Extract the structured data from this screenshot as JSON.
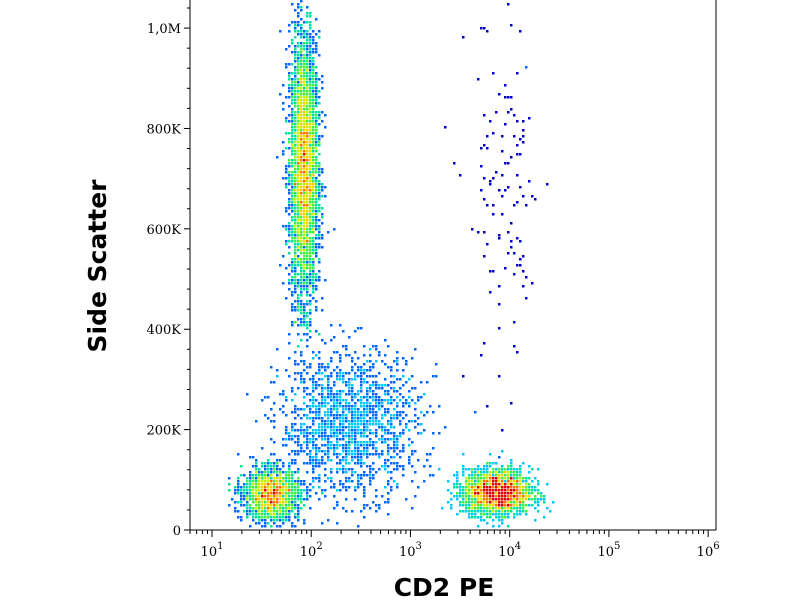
{
  "chart_data": {
    "type": "heatmap",
    "subtype": "flow-cytometry density dot plot",
    "xlabel": "CD2 PE",
    "ylabel": "Side Scatter",
    "x_scale": "log",
    "x_range": [
      6,
      1200000
    ],
    "x_ticks": [
      {
        "value": 10,
        "base": "10",
        "exp": "1"
      },
      {
        "value": 100,
        "base": "10",
        "exp": "2"
      },
      {
        "value": 1000,
        "base": "10",
        "exp": "3"
      },
      {
        "value": 10000,
        "base": "10",
        "exp": "4"
      },
      {
        "value": 100000,
        "base": "10",
        "exp": "5"
      },
      {
        "value": 1000000,
        "base": "10",
        "exp": "6"
      }
    ],
    "y_scale": "linear",
    "y_range": [
      0,
      1040000
    ],
    "y_ticks": [
      {
        "value": 0,
        "label": "0"
      },
      {
        "value": 200000,
        "label": "200K"
      },
      {
        "value": 400000,
        "label": "400K"
      },
      {
        "value": 600000,
        "label": "600K"
      },
      {
        "value": 800000,
        "label": "800K"
      },
      {
        "value": 1000000,
        "label": "1,0M"
      }
    ],
    "colormap": [
      "#0000c8",
      "#0066ff",
      "#00c8ff",
      "#00e0a0",
      "#40f040",
      "#c8f000",
      "#ffd000",
      "#ff7000",
      "#e00000"
    ],
    "populations": [
      {
        "x_center": 85,
        "y_center": 720000,
        "log_sd_x": 0.07,
        "sd_y": 130000,
        "count": 4200,
        "peak_level": 0.72
      },
      {
        "x_center": 40,
        "y_center": 70000,
        "log_sd_x": 0.14,
        "sd_y": 25000,
        "count": 1900,
        "peak_level": 0.72
      },
      {
        "x_center": 7500,
        "y_center": 75000,
        "log_sd_x": 0.17,
        "sd_y": 22000,
        "count": 2300,
        "peak_level": 1.0
      },
      {
        "x_center": 250,
        "y_center": 210000,
        "log_sd_x": 0.35,
        "sd_y": 70000,
        "count": 1600,
        "peak_level": 0.35
      },
      {
        "x_center": 9000,
        "y_center": 650000,
        "log_sd_x": 0.2,
        "sd_y": 200000,
        "count": 120,
        "peak_level": 0.05
      }
    ],
    "grid": false,
    "legend": "none"
  }
}
